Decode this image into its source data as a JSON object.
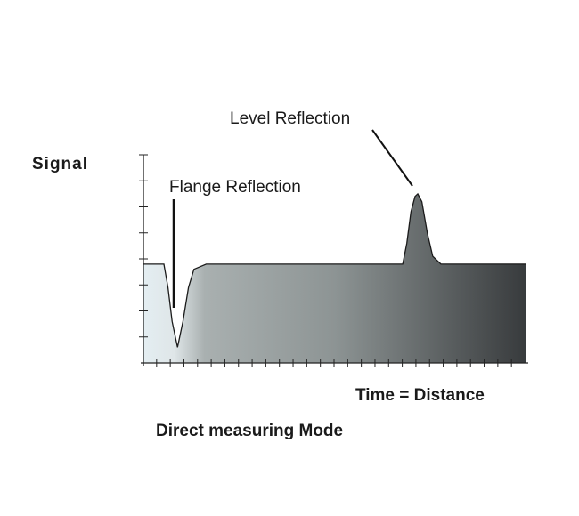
{
  "chart_data": {
    "type": "area",
    "ylabel": "Signal",
    "xlabel": "Time = Distance",
    "caption": "Direct measuring Mode",
    "annotations": [
      {
        "text": "Level Reflection",
        "x": 20.1,
        "y": 6.5
      },
      {
        "text": "Flange Reflection",
        "x": 2.5,
        "y": 0.6
      }
    ],
    "xlim": [
      0,
      28
    ],
    "ylim": [
      0,
      8
    ],
    "x_ticks": 27,
    "y_ticks": 8,
    "grid": false,
    "series": [
      {
        "x": [
          0,
          1.5,
          1.8,
          2.1,
          2.5,
          2.9,
          3.3,
          3.7,
          4.6,
          19.0,
          19.3,
          19.6,
          19.9,
          20.1,
          20.4,
          20.8,
          21.2,
          21.8,
          28
        ],
        "y": [
          3.8,
          3.8,
          2.9,
          1.6,
          0.6,
          1.6,
          2.9,
          3.6,
          3.8,
          3.8,
          4.6,
          5.8,
          6.4,
          6.5,
          6.2,
          5.0,
          4.1,
          3.8,
          3.8
        ]
      }
    ],
    "colors": {
      "fill_start": "#e4eef2",
      "fill_mid": "#8d9494",
      "fill_end": "#383b3d",
      "line": "#1a1a1a"
    }
  }
}
